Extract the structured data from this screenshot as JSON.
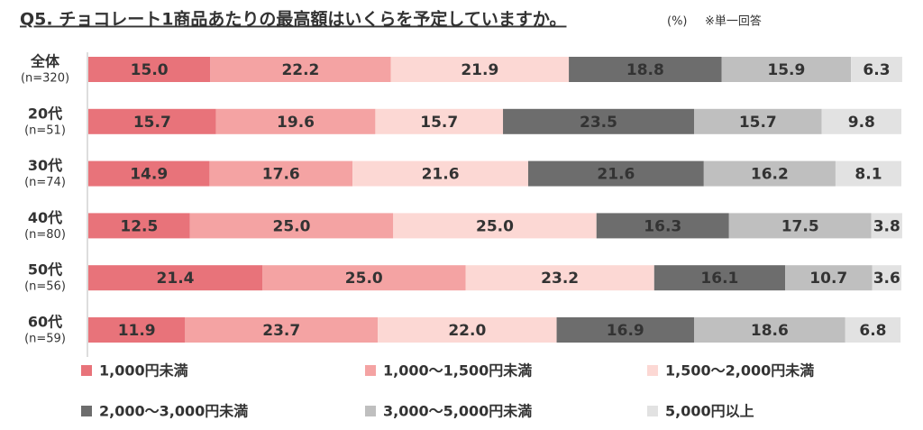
{
  "chart_data": {
    "type": "stacked_bar_horizontal",
    "title": "Q5. チョコレート1商品あたりの最高額はいくらを予定していますか。",
    "unit_note": "(%)",
    "answer_note": "※単一回答",
    "categories": [
      "全体",
      "20代",
      "30代",
      "40代",
      "50代",
      "60代"
    ],
    "sample_sizes": [
      "(n=320)",
      "(n=51)",
      "(n=74)",
      "(n=80)",
      "(n=56)",
      "(n=59)"
    ],
    "xlim": [
      0,
      100
    ],
    "series": [
      {
        "name": "1,000円未満",
        "color": "#e8737a",
        "values": [
          15.0,
          15.7,
          14.9,
          12.5,
          21.4,
          11.9
        ],
        "value_labels": [
          "15.0",
          "15.7",
          "14.9",
          "12.5",
          "21.4",
          "11.9"
        ]
      },
      {
        "name": "1,000～1,500円未満",
        "color": "#f4a3a3",
        "values": [
          22.2,
          19.6,
          17.6,
          25.0,
          25.0,
          23.7
        ],
        "value_labels": [
          "22.2",
          "19.6",
          "17.6",
          "25.0",
          "25.0",
          "23.7"
        ]
      },
      {
        "name": "1,500～2,000円未満",
        "color": "#fcd8d4",
        "values": [
          21.9,
          15.7,
          21.6,
          25.0,
          23.2,
          22.0
        ],
        "value_labels": [
          "21.9",
          "15.7",
          "21.6",
          "25.0",
          "23.2",
          "22.0"
        ]
      },
      {
        "name": "2,000～3,000円未満",
        "color": "#6d6d6d",
        "values": [
          18.8,
          23.5,
          21.6,
          16.3,
          16.1,
          16.9
        ],
        "value_labels": [
          "18.8",
          "23.5",
          "21.6",
          "16.3",
          "16.1",
          "16.9"
        ]
      },
      {
        "name": "3,000～5,000円未満",
        "color": "#bfbfbf",
        "values": [
          15.9,
          15.7,
          16.2,
          17.5,
          10.7,
          18.6
        ],
        "value_labels": [
          "15.9",
          "15.7",
          "16.2",
          "17.5",
          "10.7",
          "18.6"
        ]
      },
      {
        "name": "5,000円以上",
        "color": "#e2e2e2",
        "values": [
          6.3,
          9.8,
          8.1,
          3.8,
          3.6,
          6.8
        ],
        "value_labels": [
          "6.3",
          "9.8",
          "8.1",
          "3.8",
          "3.6",
          "6.8"
        ]
      }
    ]
  }
}
